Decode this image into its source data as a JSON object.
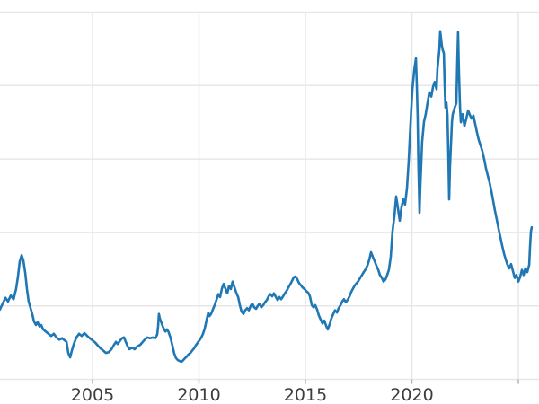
{
  "colors": {
    "background": "#ffffff",
    "line": "#1f77b4",
    "gridline": "#e7e7e7",
    "tick_mark": "#b0b0b0",
    "tick_label": "#3d3d3d"
  },
  "chart_data": {
    "type": "line",
    "title": "",
    "xlabel": "",
    "ylabel": "",
    "legend": "none",
    "grid": true,
    "x_axis": {
      "tick_years": [
        2005,
        2010,
        2015,
        2020,
        2025
      ],
      "visible_tick_labels": [
        "2005",
        "2010",
        "2015",
        "2020"
      ],
      "range_years": [
        2000.65,
        2025.97
      ]
    },
    "y_axis": {
      "visible_tick_labels": [],
      "gridline_values": [
        0,
        1,
        2,
        3,
        4,
        5
      ],
      "range_units": [
        0,
        5
      ]
    },
    "series": [
      {
        "name": "series-1",
        "color": "#1f77b4",
        "points": [
          [
            2000.65,
            0.95
          ],
          [
            2000.78,
            1.03
          ],
          [
            2000.91,
            1.11
          ],
          [
            2001.03,
            1.06
          ],
          [
            2001.16,
            1.14
          ],
          [
            2001.29,
            1.09
          ],
          [
            2001.41,
            1.23
          ],
          [
            2001.5,
            1.4
          ],
          [
            2001.58,
            1.6
          ],
          [
            2001.67,
            1.69
          ],
          [
            2001.75,
            1.62
          ],
          [
            2001.84,
            1.45
          ],
          [
            2001.92,
            1.23
          ],
          [
            2002.0,
            1.06
          ],
          [
            2002.09,
            0.97
          ],
          [
            2002.17,
            0.89
          ],
          [
            2002.25,
            0.79
          ],
          [
            2002.34,
            0.74
          ],
          [
            2002.42,
            0.78
          ],
          [
            2002.51,
            0.72
          ],
          [
            2002.59,
            0.74
          ],
          [
            2002.68,
            0.68
          ],
          [
            2002.8,
            0.65
          ],
          [
            2002.93,
            0.62
          ],
          [
            2003.06,
            0.59
          ],
          [
            2003.18,
            0.62
          ],
          [
            2003.31,
            0.57
          ],
          [
            2003.44,
            0.54
          ],
          [
            2003.57,
            0.56
          ],
          [
            2003.69,
            0.53
          ],
          [
            2003.78,
            0.51
          ],
          [
            2003.86,
            0.36
          ],
          [
            2003.95,
            0.3
          ],
          [
            2004.03,
            0.39
          ],
          [
            2004.11,
            0.47
          ],
          [
            2004.24,
            0.57
          ],
          [
            2004.37,
            0.62
          ],
          [
            2004.49,
            0.59
          ],
          [
            2004.62,
            0.63
          ],
          [
            2004.75,
            0.59
          ],
          [
            2004.87,
            0.56
          ],
          [
            2005.0,
            0.53
          ],
          [
            2005.13,
            0.5
          ],
          [
            2005.25,
            0.46
          ],
          [
            2005.38,
            0.42
          ],
          [
            2005.51,
            0.39
          ],
          [
            2005.63,
            0.36
          ],
          [
            2005.76,
            0.37
          ],
          [
            2005.89,
            0.41
          ],
          [
            2006.01,
            0.47
          ],
          [
            2006.1,
            0.51
          ],
          [
            2006.18,
            0.48
          ],
          [
            2006.31,
            0.53
          ],
          [
            2006.39,
            0.56
          ],
          [
            2006.48,
            0.57
          ],
          [
            2006.56,
            0.51
          ],
          [
            2006.65,
            0.45
          ],
          [
            2006.73,
            0.41
          ],
          [
            2006.86,
            0.43
          ],
          [
            2006.98,
            0.41
          ],
          [
            2007.11,
            0.45
          ],
          [
            2007.24,
            0.47
          ],
          [
            2007.36,
            0.51
          ],
          [
            2007.45,
            0.54
          ],
          [
            2007.57,
            0.57
          ],
          [
            2007.7,
            0.56
          ],
          [
            2007.83,
            0.57
          ],
          [
            2007.95,
            0.56
          ],
          [
            2008.04,
            0.61
          ],
          [
            2008.08,
            0.72
          ],
          [
            2008.12,
            0.89
          ],
          [
            2008.16,
            0.83
          ],
          [
            2008.25,
            0.76
          ],
          [
            2008.33,
            0.7
          ],
          [
            2008.42,
            0.65
          ],
          [
            2008.5,
            0.68
          ],
          [
            2008.58,
            0.64
          ],
          [
            2008.67,
            0.56
          ],
          [
            2008.76,
            0.45
          ],
          [
            2008.84,
            0.35
          ],
          [
            2008.92,
            0.29
          ],
          [
            2009.01,
            0.26
          ],
          [
            2009.09,
            0.25
          ],
          [
            2009.18,
            0.24
          ],
          [
            2009.26,
            0.26
          ],
          [
            2009.35,
            0.29
          ],
          [
            2009.43,
            0.31
          ],
          [
            2009.51,
            0.34
          ],
          [
            2009.6,
            0.36
          ],
          [
            2009.68,
            0.39
          ],
          [
            2009.77,
            0.42
          ],
          [
            2009.85,
            0.46
          ],
          [
            2009.94,
            0.5
          ],
          [
            2010.02,
            0.53
          ],
          [
            2010.11,
            0.57
          ],
          [
            2010.19,
            0.62
          ],
          [
            2010.27,
            0.69
          ],
          [
            2010.36,
            0.81
          ],
          [
            2010.44,
            0.91
          ],
          [
            2010.49,
            0.86
          ],
          [
            2010.57,
            0.89
          ],
          [
            2010.65,
            0.95
          ],
          [
            2010.74,
            1.01
          ],
          [
            2010.82,
            1.08
          ],
          [
            2010.91,
            1.16
          ],
          [
            2010.99,
            1.12
          ],
          [
            2011.08,
            1.24
          ],
          [
            2011.16,
            1.3
          ],
          [
            2011.25,
            1.23
          ],
          [
            2011.33,
            1.17
          ],
          [
            2011.41,
            1.27
          ],
          [
            2011.5,
            1.23
          ],
          [
            2011.58,
            1.33
          ],
          [
            2011.67,
            1.25
          ],
          [
            2011.75,
            1.18
          ],
          [
            2011.84,
            1.12
          ],
          [
            2011.92,
            1.01
          ],
          [
            2012.0,
            0.92
          ],
          [
            2012.09,
            0.89
          ],
          [
            2012.17,
            0.94
          ],
          [
            2012.26,
            0.97
          ],
          [
            2012.34,
            0.94
          ],
          [
            2012.43,
            1.0
          ],
          [
            2012.51,
            1.03
          ],
          [
            2012.59,
            0.98
          ],
          [
            2012.68,
            0.96
          ],
          [
            2012.76,
            1.0
          ],
          [
            2012.85,
            1.03
          ],
          [
            2012.93,
            0.98
          ],
          [
            2013.02,
            1.01
          ],
          [
            2013.1,
            1.05
          ],
          [
            2013.19,
            1.08
          ],
          [
            2013.27,
            1.13
          ],
          [
            2013.35,
            1.16
          ],
          [
            2013.44,
            1.13
          ],
          [
            2013.52,
            1.17
          ],
          [
            2013.61,
            1.12
          ],
          [
            2013.69,
            1.08
          ],
          [
            2013.78,
            1.12
          ],
          [
            2013.86,
            1.09
          ],
          [
            2013.95,
            1.13
          ],
          [
            2014.03,
            1.17
          ],
          [
            2014.11,
            1.2
          ],
          [
            2014.2,
            1.25
          ],
          [
            2014.28,
            1.29
          ],
          [
            2014.37,
            1.34
          ],
          [
            2014.45,
            1.39
          ],
          [
            2014.54,
            1.4
          ],
          [
            2014.62,
            1.36
          ],
          [
            2014.7,
            1.31
          ],
          [
            2014.79,
            1.28
          ],
          [
            2014.87,
            1.25
          ],
          [
            2014.96,
            1.23
          ],
          [
            2015.04,
            1.2
          ],
          [
            2015.13,
            1.18
          ],
          [
            2015.21,
            1.13
          ],
          [
            2015.3,
            1.01
          ],
          [
            2015.38,
            0.98
          ],
          [
            2015.46,
            1.01
          ],
          [
            2015.55,
            0.95
          ],
          [
            2015.63,
            0.87
          ],
          [
            2015.72,
            0.81
          ],
          [
            2015.8,
            0.76
          ],
          [
            2015.89,
            0.8
          ],
          [
            2015.97,
            0.73
          ],
          [
            2016.05,
            0.68
          ],
          [
            2016.14,
            0.75
          ],
          [
            2016.22,
            0.83
          ],
          [
            2016.31,
            0.89
          ],
          [
            2016.39,
            0.94
          ],
          [
            2016.48,
            0.91
          ],
          [
            2016.56,
            0.97
          ],
          [
            2016.65,
            1.01
          ],
          [
            2016.73,
            1.06
          ],
          [
            2016.81,
            1.09
          ],
          [
            2016.9,
            1.05
          ],
          [
            2016.98,
            1.08
          ],
          [
            2017.07,
            1.13
          ],
          [
            2017.15,
            1.19
          ],
          [
            2017.24,
            1.24
          ],
          [
            2017.32,
            1.28
          ],
          [
            2017.41,
            1.31
          ],
          [
            2017.49,
            1.34
          ],
          [
            2017.57,
            1.38
          ],
          [
            2017.66,
            1.42
          ],
          [
            2017.74,
            1.46
          ],
          [
            2017.83,
            1.5
          ],
          [
            2017.91,
            1.55
          ],
          [
            2018.0,
            1.63
          ],
          [
            2018.08,
            1.73
          ],
          [
            2018.16,
            1.67
          ],
          [
            2018.25,
            1.61
          ],
          [
            2018.33,
            1.55
          ],
          [
            2018.42,
            1.49
          ],
          [
            2018.5,
            1.42
          ],
          [
            2018.59,
            1.38
          ],
          [
            2018.67,
            1.33
          ],
          [
            2018.76,
            1.36
          ],
          [
            2018.84,
            1.42
          ],
          [
            2018.92,
            1.49
          ],
          [
            2019.01,
            1.67
          ],
          [
            2019.09,
            2.01
          ],
          [
            2019.18,
            2.23
          ],
          [
            2019.26,
            2.49
          ],
          [
            2019.35,
            2.32
          ],
          [
            2019.43,
            2.16
          ],
          [
            2019.51,
            2.34
          ],
          [
            2019.6,
            2.45
          ],
          [
            2019.68,
            2.38
          ],
          [
            2019.77,
            2.6
          ],
          [
            2019.85,
            2.96
          ],
          [
            2019.94,
            3.51
          ],
          [
            2020.02,
            3.94
          ],
          [
            2020.11,
            4.21
          ],
          [
            2020.19,
            4.37
          ],
          [
            2020.23,
            4.0
          ],
          [
            2020.27,
            3.58
          ],
          [
            2020.31,
            2.9
          ],
          [
            2020.36,
            2.27
          ],
          [
            2020.4,
            2.66
          ],
          [
            2020.48,
            3.23
          ],
          [
            2020.57,
            3.51
          ],
          [
            2020.65,
            3.61
          ],
          [
            2020.74,
            3.77
          ],
          [
            2020.82,
            3.91
          ],
          [
            2020.91,
            3.85
          ],
          [
            2020.99,
            3.98
          ],
          [
            2021.07,
            4.05
          ],
          [
            2021.16,
            3.95
          ],
          [
            2021.2,
            4.22
          ],
          [
            2021.29,
            4.49
          ],
          [
            2021.33,
            4.74
          ],
          [
            2021.37,
            4.64
          ],
          [
            2021.41,
            4.54
          ],
          [
            2021.45,
            4.48
          ],
          [
            2021.5,
            4.44
          ],
          [
            2021.54,
            4.0
          ],
          [
            2021.58,
            3.7
          ],
          [
            2021.62,
            3.77
          ],
          [
            2021.67,
            3.6
          ],
          [
            2021.71,
            3.09
          ],
          [
            2021.75,
            2.45
          ],
          [
            2021.79,
            2.89
          ],
          [
            2021.84,
            3.23
          ],
          [
            2021.88,
            3.51
          ],
          [
            2021.92,
            3.61
          ],
          [
            2022.0,
            3.69
          ],
          [
            2022.09,
            3.76
          ],
          [
            2022.13,
            4.31
          ],
          [
            2022.17,
            4.73
          ],
          [
            2022.21,
            4.19
          ],
          [
            2022.26,
            3.7
          ],
          [
            2022.3,
            3.5
          ],
          [
            2022.38,
            3.61
          ],
          [
            2022.47,
            3.45
          ],
          [
            2022.55,
            3.54
          ],
          [
            2022.64,
            3.66
          ],
          [
            2022.72,
            3.6
          ],
          [
            2022.81,
            3.55
          ],
          [
            2022.89,
            3.59
          ],
          [
            2022.97,
            3.48
          ],
          [
            2023.06,
            3.36
          ],
          [
            2023.14,
            3.26
          ],
          [
            2023.23,
            3.18
          ],
          [
            2023.31,
            3.11
          ],
          [
            2023.4,
            2.99
          ],
          [
            2023.48,
            2.87
          ],
          [
            2023.57,
            2.77
          ],
          [
            2023.65,
            2.68
          ],
          [
            2023.73,
            2.57
          ],
          [
            2023.82,
            2.43
          ],
          [
            2023.9,
            2.3
          ],
          [
            2023.99,
            2.17
          ],
          [
            2024.07,
            2.05
          ],
          [
            2024.16,
            1.93
          ],
          [
            2024.24,
            1.82
          ],
          [
            2024.33,
            1.71
          ],
          [
            2024.41,
            1.63
          ],
          [
            2024.49,
            1.56
          ],
          [
            2024.58,
            1.51
          ],
          [
            2024.66,
            1.57
          ],
          [
            2024.75,
            1.47
          ],
          [
            2024.83,
            1.38
          ],
          [
            2024.91,
            1.42
          ],
          [
            2025.0,
            1.33
          ],
          [
            2025.08,
            1.39
          ],
          [
            2025.17,
            1.49
          ],
          [
            2025.25,
            1.42
          ],
          [
            2025.33,
            1.51
          ],
          [
            2025.42,
            1.46
          ],
          [
            2025.51,
            1.56
          ],
          [
            2025.55,
            1.8
          ],
          [
            2025.59,
            2.01
          ],
          [
            2025.63,
            2.07
          ]
        ]
      }
    ]
  }
}
